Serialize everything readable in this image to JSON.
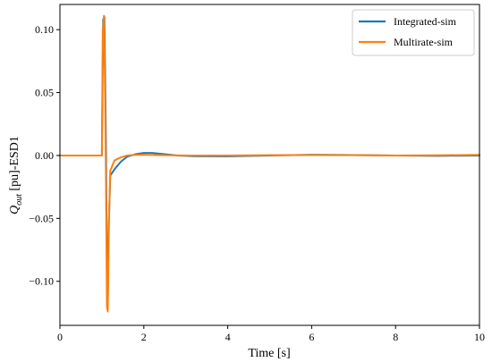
{
  "chart_data": {
    "type": "line",
    "title": "",
    "xlabel": "Time [s]",
    "ylabel_main": "Q",
    "ylabel_sub": "out",
    "ylabel_tail": " [pu]-ESD1",
    "xlim": [
      0,
      10
    ],
    "ylim": [
      -0.135,
      0.12
    ],
    "xticks": [
      0,
      2,
      4,
      6,
      8,
      10
    ],
    "xtick_labels": [
      "0",
      "2",
      "4",
      "6",
      "8",
      "10"
    ],
    "yticks": [
      0.1,
      0.05,
      0.0,
      -0.05,
      -0.1
    ],
    "ytick_labels": [
      "0.10",
      "0.05",
      "0.00",
      "−0.05",
      "−0.10"
    ],
    "grid": false,
    "legend_position": "top-right",
    "series": [
      {
        "name": "Integrated-sim",
        "color": "#1f77b4",
        "x": [
          0,
          0.98,
          1.0,
          1.03,
          1.06,
          1.08,
          1.1,
          1.12,
          1.14,
          1.16,
          1.2,
          1.3,
          1.45,
          1.6,
          1.8,
          2.0,
          2.2,
          2.5,
          2.8,
          3.2,
          4.0,
          5.0,
          6.0,
          7.0,
          8.0,
          9.0,
          10.0
        ],
        "y": [
          0.0,
          0.0,
          0.0,
          0.108,
          0.11,
          0.06,
          0.0,
          -0.1,
          -0.118,
          -0.06,
          -0.016,
          -0.011,
          -0.005,
          -0.001,
          0.001,
          0.002,
          0.002,
          0.001,
          0.0,
          -0.0006,
          -0.0007,
          0.0,
          0.0006,
          0.0003,
          0.0,
          -0.0003,
          0.0
        ]
      },
      {
        "name": "Multirate-sim",
        "color": "#ff7f0e",
        "x": [
          0,
          0.98,
          1.0,
          1.02,
          1.05,
          1.08,
          1.1,
          1.12,
          1.14,
          1.17,
          1.2,
          1.3,
          1.45,
          1.6,
          1.8,
          2.0,
          2.2,
          2.5,
          3.0,
          4.0,
          5.0,
          6.0,
          7.0,
          8.0,
          9.0,
          10.0
        ],
        "y": [
          0.0,
          0.0,
          0.0,
          0.098,
          0.111,
          0.04,
          -0.03,
          -0.12,
          -0.124,
          -0.05,
          -0.012,
          -0.004,
          -0.0015,
          0.0,
          0.0005,
          0.0006,
          0.0004,
          0.0002,
          0.0,
          0.0,
          0.0002,
          0.0003,
          0.0002,
          0.0,
          0.0001,
          0.0005
        ]
      }
    ]
  }
}
